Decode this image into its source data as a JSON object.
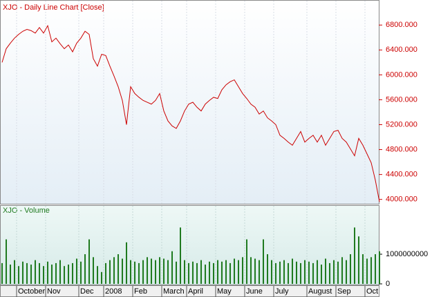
{
  "chart_data": [
    {
      "type": "line",
      "title": "XJO - Daily Line Chart [Close]",
      "color": "#cc0000",
      "values": [
        6200,
        6420,
        6510,
        6590,
        6650,
        6700,
        6730,
        6710,
        6670,
        6760,
        6670,
        6790,
        6530,
        6590,
        6500,
        6420,
        6480,
        6370,
        6510,
        6590,
        6700,
        6650,
        6260,
        6140,
        6330,
        6310,
        6140,
        5980,
        5810,
        5590,
        5200,
        5810,
        5700,
        5640,
        5590,
        5560,
        5530,
        5590,
        5700,
        5420,
        5260,
        5180,
        5140,
        5260,
        5420,
        5530,
        5560,
        5480,
        5420,
        5530,
        5590,
        5640,
        5620,
        5760,
        5840,
        5890,
        5920,
        5810,
        5700,
        5620,
        5530,
        5480,
        5370,
        5420,
        5310,
        5260,
        5200,
        5030,
        4980,
        4920,
        4870,
        4980,
        5090,
        4920,
        4980,
        5030,
        4920,
        5030,
        4870,
        4980,
        5090,
        5110,
        4980,
        4920,
        4810,
        4700,
        4980,
        4870,
        4730,
        4590,
        4310,
        3960
      ],
      "ylim": [
        3930,
        7180
      ],
      "yticks": [
        {
          "value": 4000,
          "label": "4000.000"
        },
        {
          "value": 4400,
          "label": "4400.000"
        },
        {
          "value": 4800,
          "label": "4800.000"
        },
        {
          "value": 5200,
          "label": "5200.000"
        },
        {
          "value": 5600,
          "label": "5600.000"
        },
        {
          "value": 6000,
          "label": "6000.000"
        },
        {
          "value": 6400,
          "label": "6400.000"
        },
        {
          "value": 6800,
          "label": "6800.000"
        }
      ]
    },
    {
      "type": "bar",
      "title": "XJO - Volume",
      "color": "#1f7a1f",
      "categories": [
        null,
        null,
        null,
        null,
        "October",
        null,
        null,
        null,
        null,
        null,
        null,
        "Nov",
        null,
        null,
        null,
        null,
        null,
        null,
        null,
        "Dec",
        null,
        null,
        null,
        null,
        null,
        "2008",
        null,
        null,
        null,
        null,
        null,
        null,
        "Feb",
        null,
        null,
        null,
        null,
        null,
        null,
        "March",
        null,
        null,
        null,
        null,
        null,
        "April",
        null,
        null,
        null,
        null,
        null,
        null,
        "May",
        null,
        null,
        null,
        null,
        null,
        null,
        "June",
        null,
        null,
        null,
        null,
        null,
        null,
        "July",
        null,
        null,
        null,
        null,
        null,
        null,
        null,
        "August",
        null,
        null,
        null,
        null,
        null,
        null,
        "Sep",
        null,
        null,
        null,
        null,
        null,
        null,
        "Oct",
        null,
        null,
        null
      ],
      "values": [
        700000000,
        1500000000,
        650000000,
        800000000,
        600000000,
        750000000,
        700000000,
        650000000,
        800000000,
        700000000,
        600000000,
        750000000,
        650000000,
        700000000,
        800000000,
        600000000,
        650000000,
        700000000,
        850000000,
        750000000,
        1000000000,
        1500000000,
        900000000,
        600000000,
        400000000,
        700000000,
        800000000,
        900000000,
        1000000000,
        850000000,
        1400000000,
        800000000,
        750000000,
        700000000,
        800000000,
        900000000,
        850000000,
        800000000,
        900000000,
        850000000,
        800000000,
        1100000000,
        750000000,
        1900000000,
        800000000,
        700000000,
        750000000,
        700000000,
        800000000,
        650000000,
        750000000,
        700000000,
        800000000,
        750000000,
        800000000,
        700000000,
        850000000,
        800000000,
        900000000,
        1500000000,
        900000000,
        850000000,
        800000000,
        1500000000,
        1000000000,
        800000000,
        700000000,
        750000000,
        800000000,
        700000000,
        850000000,
        750000000,
        700000000,
        800000000,
        750000000,
        700000000,
        800000000,
        650000000,
        850000000,
        700000000,
        800000000,
        750000000,
        900000000,
        800000000,
        1000000000,
        1900000000,
        1600000000,
        1000000000,
        850000000,
        900000000,
        1000000000,
        1100000000
      ],
      "ylim": [
        0,
        2630000000
      ],
      "yticks": [
        0,
        1000000000
      ]
    }
  ]
}
